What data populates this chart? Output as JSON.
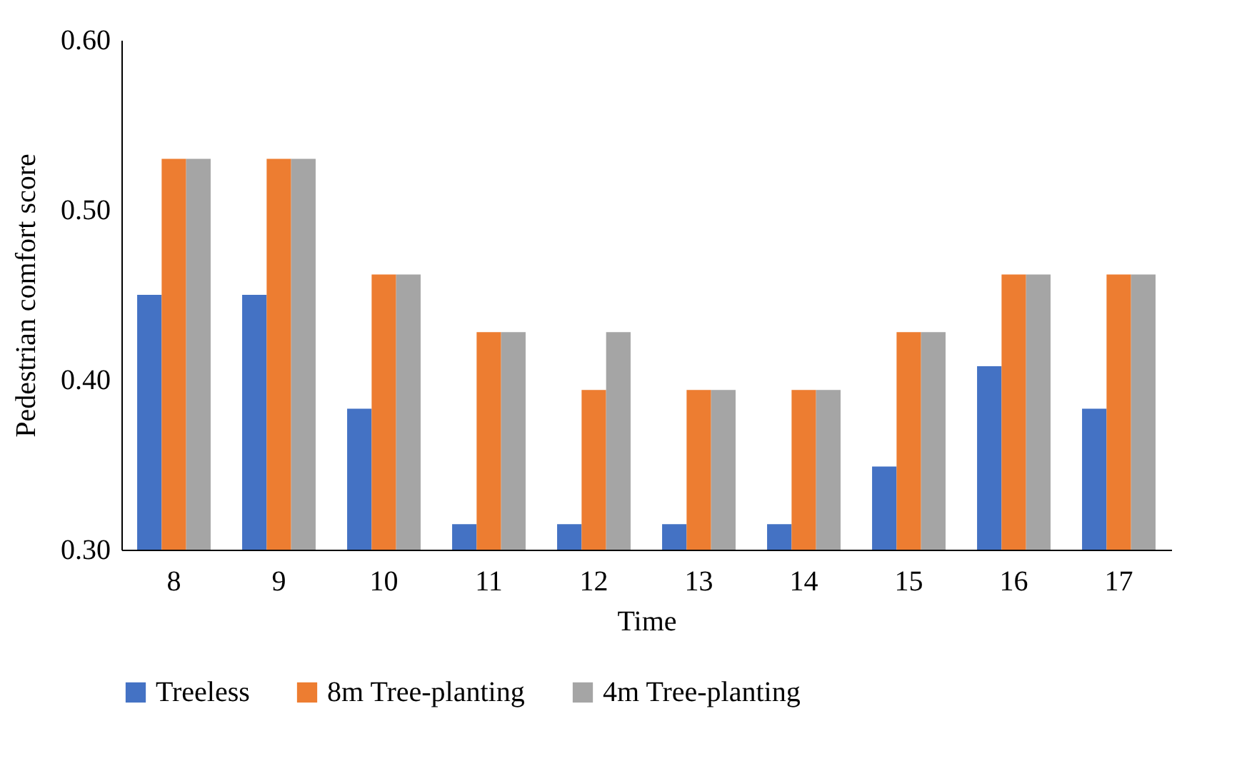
{
  "chart_data": {
    "type": "bar",
    "xlabel": "Time",
    "ylabel": "Pedestrian comfort  score",
    "categories": [
      "8",
      "9",
      "10",
      "11",
      "12",
      "13",
      "14",
      "15",
      "16",
      "17"
    ],
    "series": [
      {
        "name": "Treeless",
        "color": "#4472c4",
        "values": [
          0.45,
          0.45,
          0.383,
          0.315,
          0.315,
          0.315,
          0.315,
          0.349,
          0.408,
          0.383
        ]
      },
      {
        "name": "8m Tree-planting",
        "color": "#ed7d31",
        "values": [
          0.53,
          0.53,
          0.462,
          0.428,
          0.394,
          0.394,
          0.394,
          0.428,
          0.462,
          0.462
        ]
      },
      {
        "name": "4m Tree-planting",
        "color": "#a5a5a5",
        "values": [
          0.53,
          0.53,
          0.462,
          0.428,
          0.428,
          0.394,
          0.394,
          0.428,
          0.462,
          0.462
        ]
      }
    ],
    "ylim": [
      0.3,
      0.6
    ],
    "yticks": [
      {
        "value": 0.3,
        "label": "0.30"
      },
      {
        "value": 0.4,
        "label": "0.40"
      },
      {
        "value": 0.5,
        "label": "0.50"
      },
      {
        "value": 0.6,
        "label": "0.60"
      }
    ],
    "grid": false,
    "legend": "bottom"
  }
}
